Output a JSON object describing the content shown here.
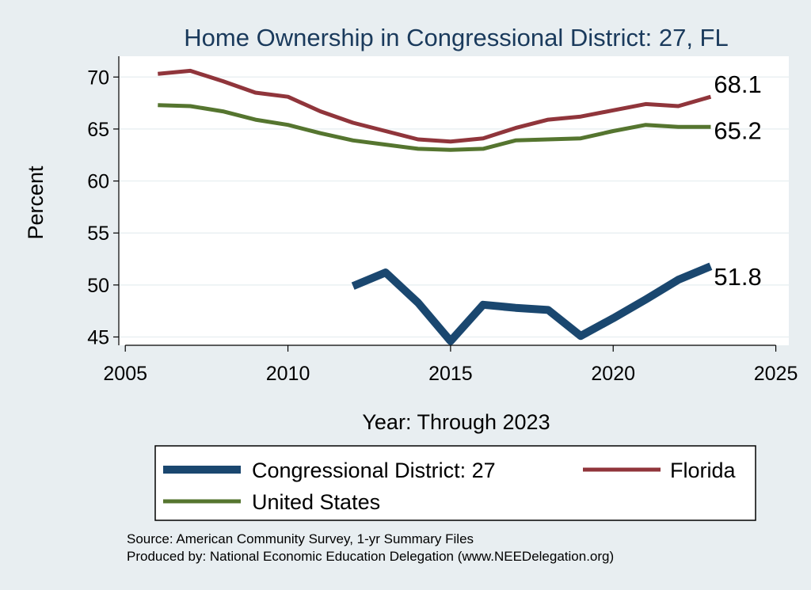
{
  "chart_data": {
    "type": "line",
    "title": "Home Ownership in Congressional District:  27, FL",
    "xlabel": "Year: Through 2023",
    "ylabel": "Percent",
    "xlim": [
      2004.8,
      2025.4
    ],
    "ylim": [
      44.2,
      72.0
    ],
    "xticks": [
      2005,
      2010,
      2015,
      2020,
      2025
    ],
    "yticks": [
      45,
      50,
      55,
      60,
      65,
      70
    ],
    "grid": true,
    "legend_position": "bottom",
    "series": [
      {
        "name": "Congressional District:  27",
        "color": "#1a476f",
        "x": [
          2012,
          2013,
          2014,
          2015,
          2016,
          2017,
          2018,
          2019,
          2020,
          2021,
          2022,
          2023
        ],
        "values": [
          49.9,
          51.2,
          48.3,
          44.6,
          48.1,
          47.8,
          47.6,
          45.1,
          46.8,
          48.6,
          50.5,
          51.8
        ],
        "end_label": "51.8"
      },
      {
        "name": "Florida",
        "color": "#90353b",
        "x": [
          2006,
          2007,
          2008,
          2009,
          2010,
          2011,
          2012,
          2013,
          2014,
          2015,
          2016,
          2017,
          2018,
          2019,
          2020,
          2021,
          2022,
          2023
        ],
        "values": [
          70.3,
          70.6,
          69.6,
          68.5,
          68.1,
          66.7,
          65.6,
          64.8,
          64.0,
          63.8,
          64.1,
          65.1,
          65.9,
          66.2,
          66.8,
          67.4,
          67.2,
          68.1
        ],
        "end_label": "68.1"
      },
      {
        "name": "United States",
        "color": "#55752f",
        "x": [
          2006,
          2007,
          2008,
          2009,
          2010,
          2011,
          2012,
          2013,
          2014,
          2015,
          2016,
          2017,
          2018,
          2019,
          2020,
          2021,
          2022,
          2023
        ],
        "values": [
          67.3,
          67.2,
          66.7,
          65.9,
          65.4,
          64.6,
          63.9,
          63.5,
          63.1,
          63.0,
          63.1,
          63.9,
          64.0,
          64.1,
          64.8,
          65.4,
          65.2,
          65.2
        ],
        "end_label": "65.2"
      }
    ]
  },
  "legend": {
    "items": [
      {
        "label": "Congressional District:  27"
      },
      {
        "label": "Florida"
      },
      {
        "label": "United States"
      }
    ]
  },
  "source": {
    "line1": "Source: American Community Survey, 1-yr Summary Files",
    "line2": "Produced by: National Economic Education Delegation (www.NEEDelegation.org)"
  }
}
